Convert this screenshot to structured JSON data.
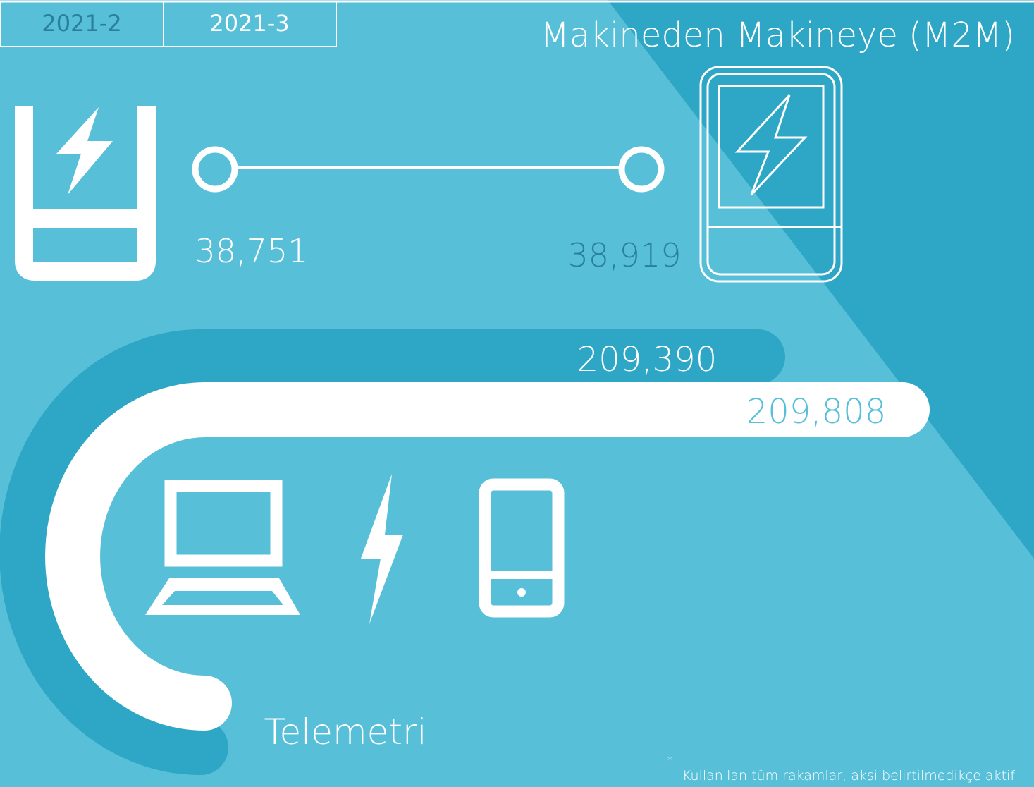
{
  "tabs": [
    "2021-2",
    "2021-3"
  ],
  "title": "Makineden Makineye (M2M)",
  "m2m": {
    "start": "38,751",
    "end": "38,919"
  },
  "telemetry": {
    "label": "Telemetri",
    "previous": "209,390",
    "current": "209,808"
  },
  "footnote": {
    "marker": "*",
    "text": "Kullanılan tüm rakamlar, aksi belirtilmedikçe aktif"
  }
}
